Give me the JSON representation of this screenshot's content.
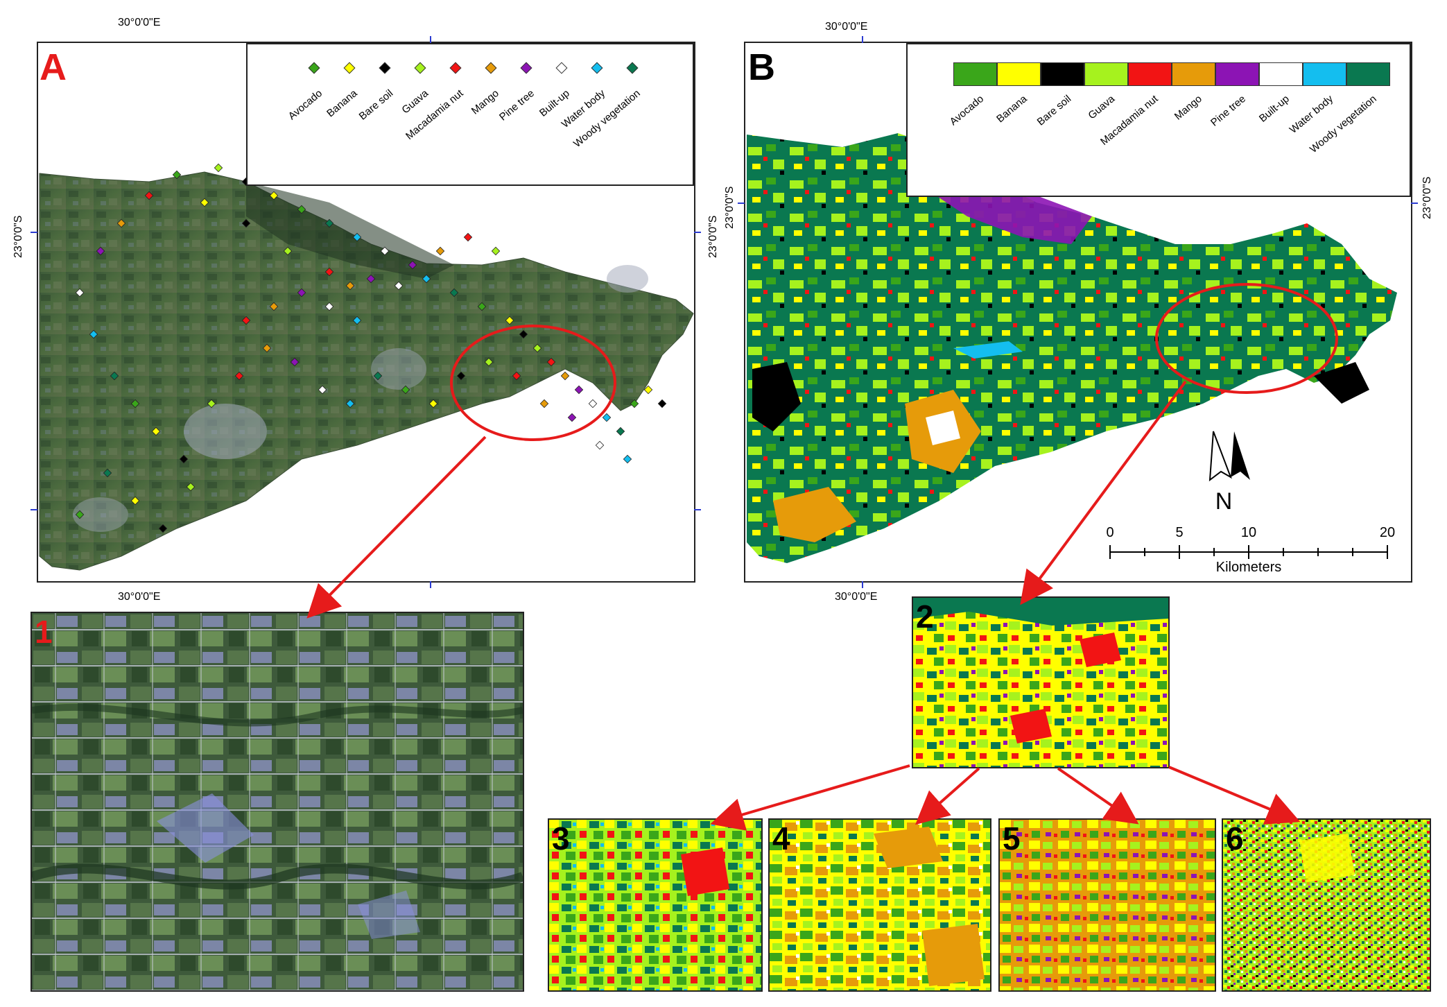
{
  "panels": {
    "a": {
      "letter": "A"
    },
    "b": {
      "letter": "B"
    }
  },
  "coords": {
    "a_top": "30°0'0\"E",
    "a_bottom": "30°0'0\"E",
    "a_left": "23°0'0\"S",
    "a_right": "23°0'0\"S",
    "b_top": "30°0'0\"E",
    "b_bottom": "30°0'0\"E",
    "b_left": "23°0'0\"S",
    "b_right": "23°0'0\"S"
  },
  "legend": {
    "classes": [
      {
        "name": "Avocado",
        "color": "#3aa61a"
      },
      {
        "name": "Banana",
        "color": "#ffff00"
      },
      {
        "name": "Bare soil",
        "color": "#000000"
      },
      {
        "name": "Guava",
        "color": "#a6f21e"
      },
      {
        "name": "Macadamia nut",
        "color": "#f21414"
      },
      {
        "name": "Mango",
        "color": "#e69b0a"
      },
      {
        "name": "Pine tree",
        "color": "#8c14b4"
      },
      {
        "name": "Built-up",
        "color": "#ffffff"
      },
      {
        "name": "Water body",
        "color": "#14beef"
      },
      {
        "name": "Woody vegetation",
        "color": "#0a7850"
      }
    ]
  },
  "north_arrow": {
    "label": "N"
  },
  "scale_bar": {
    "ticks": [
      "0",
      "5",
      "10",
      "20"
    ],
    "unit": "Kilometers"
  },
  "zoom_panels": [
    "1",
    "2",
    "3",
    "4",
    "5",
    "6"
  ]
}
